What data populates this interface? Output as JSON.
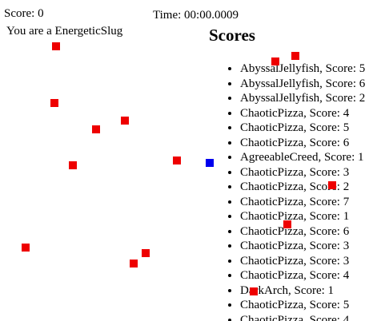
{
  "hud": {
    "score_text": "Score: 0",
    "time_text": "Time: 00:00.0009",
    "identity_text": "You are a EnergeticSlug"
  },
  "scoreboard": {
    "title": "Scores",
    "entries": [
      "AbyssalJellyfish, Score: 5",
      "AbyssalJellyfish, Score: 6",
      "AbyssalJellyfish, Score: 2",
      "ChaoticPizza, Score: 4",
      "ChaoticPizza, Score: 5",
      "ChaoticPizza, Score: 6",
      "AgreeableCreed, Score: 1",
      "ChaoticPizza, Score: 3",
      "ChaoticPizza, Score: 2",
      "ChaoticPizza, Score: 7",
      "ChaoticPizza, Score: 1",
      "ChaoticPizza, Score: 6",
      "ChaoticPizza, Score: 3",
      "ChaoticPizza, Score: 3",
      "ChaoticPizza, Score: 4",
      "DarkArch, Score: 1",
      "ChaoticPizza, Score: 5",
      "ChaoticPizza, Score: 4"
    ]
  },
  "colors": {
    "food": "#ee0000",
    "player": "#0000ee"
  }
}
